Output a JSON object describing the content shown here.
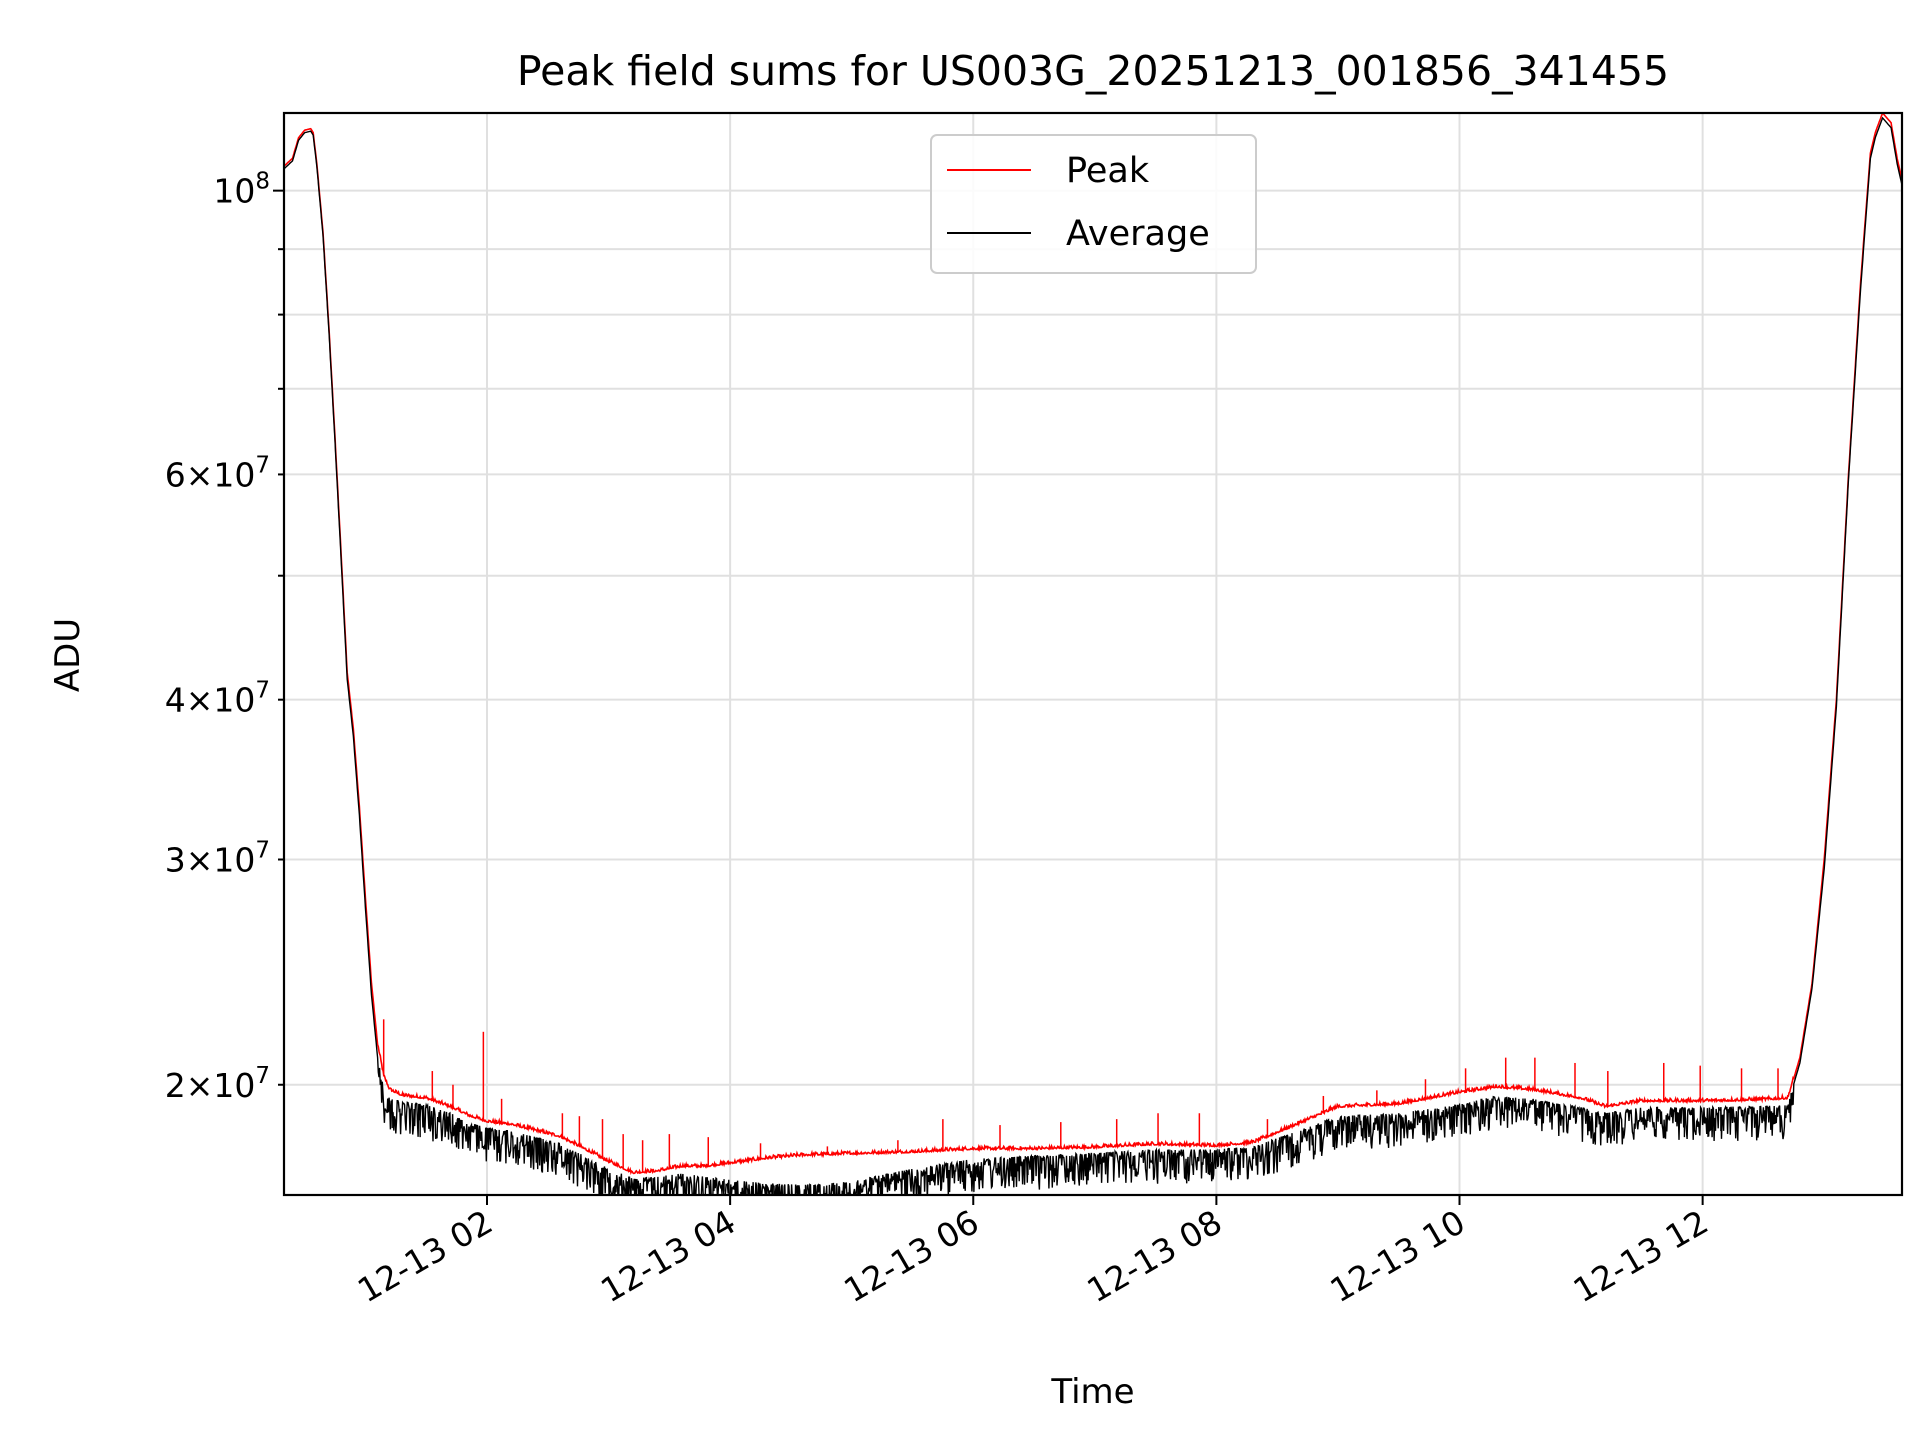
{
  "chart_data": {
    "type": "line",
    "title": "Peak field sums for US003G_20251213_001856_341455",
    "xlabel": "Time",
    "ylabel": "ADU",
    "yscale": "log",
    "xlim": [
      0.33,
      13.64
    ],
    "ylim": [
      16400000,
      115000000
    ],
    "grid": true,
    "legend_position": "top-center",
    "x_ticks": [
      {
        "value": 2,
        "label": "12-13 02"
      },
      {
        "value": 4,
        "label": "12-13 04"
      },
      {
        "value": 6,
        "label": "12-13 06"
      },
      {
        "value": 8,
        "label": "12-13 08"
      },
      {
        "value": 10,
        "label": "12-13 10"
      },
      {
        "value": 12,
        "label": "12-13 12"
      }
    ],
    "y_major_ticks": [
      {
        "value": 100000000,
        "mantissa": "",
        "base": "10",
        "exp": "8"
      }
    ],
    "y_minor_ticks": [
      {
        "value": 20000000,
        "mantissa": "2",
        "base": "10",
        "exp": "7"
      },
      {
        "value": 30000000,
        "mantissa": "3",
        "base": "10",
        "exp": "7"
      },
      {
        "value": 40000000,
        "mantissa": "4",
        "base": "10",
        "exp": "7"
      },
      {
        "value": 50000000,
        "mantissa": "",
        "base": "",
        "exp": ""
      },
      {
        "value": 60000000,
        "mantissa": "6",
        "base": "10",
        "exp": "7"
      },
      {
        "value": 70000000,
        "mantissa": "",
        "base": "",
        "exp": ""
      },
      {
        "value": 80000000,
        "mantissa": "",
        "base": "",
        "exp": ""
      },
      {
        "value": 90000000,
        "mantissa": "",
        "base": "",
        "exp": ""
      }
    ],
    "x_unit": "hours since 2025-12-13 00:00",
    "series": [
      {
        "name": "Peak",
        "color": "#ff0000",
        "points": [
          [
            0.33,
            104500000
          ],
          [
            0.4,
            106000000
          ],
          [
            0.45,
            110000000
          ],
          [
            0.5,
            111500000
          ],
          [
            0.55,
            111800000
          ],
          [
            0.57,
            111000000
          ],
          [
            0.6,
            105000000
          ],
          [
            0.65,
            93000000
          ],
          [
            0.7,
            78000000
          ],
          [
            0.75,
            64000000
          ],
          [
            0.8,
            52000000
          ],
          [
            0.85,
            42000000
          ],
          [
            0.9,
            38000000
          ],
          [
            0.95,
            33000000
          ],
          [
            1.0,
            28000000
          ],
          [
            1.05,
            24000000
          ],
          [
            1.1,
            21500000
          ],
          [
            1.15,
            20300000
          ],
          [
            1.2,
            19800000
          ],
          [
            1.3,
            19600000
          ],
          [
            1.5,
            19500000
          ],
          [
            1.7,
            19200000
          ],
          [
            1.85,
            18900000
          ],
          [
            2.0,
            18700000
          ],
          [
            2.2,
            18600000
          ],
          [
            2.4,
            18400000
          ],
          [
            2.6,
            18200000
          ],
          [
            2.8,
            17800000
          ],
          [
            3.0,
            17400000
          ],
          [
            3.2,
            17050000
          ],
          [
            3.4,
            17100000
          ],
          [
            3.6,
            17250000
          ],
          [
            3.8,
            17250000
          ],
          [
            4.0,
            17350000
          ],
          [
            4.3,
            17500000
          ],
          [
            4.6,
            17600000
          ],
          [
            5.0,
            17650000
          ],
          [
            5.5,
            17700000
          ],
          [
            6.0,
            17800000
          ],
          [
            6.5,
            17800000
          ],
          [
            7.0,
            17850000
          ],
          [
            7.5,
            17950000
          ],
          [
            8.0,
            17900000
          ],
          [
            8.3,
            18000000
          ],
          [
            8.6,
            18500000
          ],
          [
            9.0,
            19200000
          ],
          [
            9.5,
            19300000
          ],
          [
            10.0,
            19700000
          ],
          [
            10.3,
            19900000
          ],
          [
            10.6,
            19800000
          ],
          [
            11.0,
            19500000
          ],
          [
            11.2,
            19200000
          ],
          [
            11.5,
            19400000
          ],
          [
            12.0,
            19400000
          ],
          [
            12.5,
            19450000
          ],
          [
            12.7,
            19500000
          ],
          [
            12.8,
            21000000
          ],
          [
            12.9,
            24000000
          ],
          [
            13.0,
            30000000
          ],
          [
            13.1,
            40000000
          ],
          [
            13.2,
            60000000
          ],
          [
            13.3,
            85000000
          ],
          [
            13.38,
            107000000
          ],
          [
            13.42,
            111000000
          ],
          [
            13.48,
            115000000
          ],
          [
            13.55,
            113000000
          ],
          [
            13.6,
            106000000
          ],
          [
            13.64,
            102000000
          ]
        ]
      },
      {
        "name": "Average",
        "color": "#000000",
        "points": [
          [
            0.33,
            104000000
          ],
          [
            0.4,
            105500000
          ],
          [
            0.45,
            109500000
          ],
          [
            0.5,
            111000000
          ],
          [
            0.55,
            111300000
          ],
          [
            0.57,
            110500000
          ],
          [
            0.6,
            104500000
          ],
          [
            0.65,
            92500000
          ],
          [
            0.7,
            77500000
          ],
          [
            0.75,
            63500000
          ],
          [
            0.8,
            51500000
          ],
          [
            0.85,
            41500000
          ],
          [
            0.9,
            37500000
          ],
          [
            0.95,
            32500000
          ],
          [
            1.0,
            27500000
          ],
          [
            1.05,
            23500000
          ],
          [
            1.1,
            21000000
          ],
          [
            1.15,
            19900000
          ],
          [
            1.2,
            19500000
          ],
          [
            1.3,
            19400000
          ],
          [
            1.5,
            19300000
          ],
          [
            1.7,
            19000000
          ],
          [
            1.85,
            18700000
          ],
          [
            2.0,
            18500000
          ],
          [
            2.2,
            18400000
          ],
          [
            2.4,
            18200000
          ],
          [
            2.6,
            18000000
          ],
          [
            2.8,
            17600000
          ],
          [
            3.0,
            17200000
          ],
          [
            3.2,
            16900000
          ],
          [
            3.4,
            16950000
          ],
          [
            3.6,
            17050000
          ],
          [
            3.8,
            16950000
          ],
          [
            4.0,
            16850000
          ],
          [
            4.3,
            16750000
          ],
          [
            4.6,
            16700000
          ],
          [
            5.0,
            16800000
          ],
          [
            5.5,
            17200000
          ],
          [
            6.0,
            17500000
          ],
          [
            6.5,
            17600000
          ],
          [
            7.0,
            17700000
          ],
          [
            7.5,
            17800000
          ],
          [
            8.0,
            17800000
          ],
          [
            8.3,
            17900000
          ],
          [
            8.6,
            18300000
          ],
          [
            9.0,
            18900000
          ],
          [
            9.5,
            19000000
          ],
          [
            10.0,
            19300000
          ],
          [
            10.3,
            19600000
          ],
          [
            10.6,
            19500000
          ],
          [
            11.0,
            19200000
          ],
          [
            11.2,
            19000000
          ],
          [
            11.5,
            19200000
          ],
          [
            12.0,
            19200000
          ],
          [
            12.5,
            19250000
          ],
          [
            12.7,
            19300000
          ],
          [
            12.8,
            20800000
          ],
          [
            12.9,
            23800000
          ],
          [
            13.0,
            29500000
          ],
          [
            13.1,
            39500000
          ],
          [
            13.2,
            59500000
          ],
          [
            13.3,
            84000000
          ],
          [
            13.38,
            106000000
          ],
          [
            13.42,
            110000000
          ],
          [
            13.48,
            114000000
          ],
          [
            13.55,
            112000000
          ],
          [
            13.6,
            105000000
          ],
          [
            13.64,
            101000000
          ]
        ]
      }
    ],
    "peak_spikes": [
      [
        1.15,
        22500000
      ],
      [
        1.55,
        20500000
      ],
      [
        1.72,
        20000000
      ],
      [
        1.97,
        22000000
      ],
      [
        2.12,
        19500000
      ],
      [
        2.62,
        19000000
      ],
      [
        2.76,
        18900000
      ],
      [
        2.95,
        18800000
      ],
      [
        3.12,
        18300000
      ],
      [
        3.28,
        18100000
      ],
      [
        3.5,
        18300000
      ],
      [
        3.82,
        18200000
      ],
      [
        4.25,
        18000000
      ],
      [
        4.8,
        17900000
      ],
      [
        5.38,
        18100000
      ],
      [
        5.75,
        18800000
      ],
      [
        6.22,
        18600000
      ],
      [
        6.72,
        18700000
      ],
      [
        7.18,
        18800000
      ],
      [
        7.52,
        19000000
      ],
      [
        7.86,
        19000000
      ],
      [
        8.42,
        18800000
      ],
      [
        8.88,
        19600000
      ],
      [
        9.32,
        19800000
      ],
      [
        9.72,
        20200000
      ],
      [
        10.05,
        20600000
      ],
      [
        10.38,
        21000000
      ],
      [
        10.62,
        21000000
      ],
      [
        10.95,
        20800000
      ],
      [
        11.22,
        20500000
      ],
      [
        11.68,
        20800000
      ],
      [
        11.98,
        20700000
      ],
      [
        12.32,
        20600000
      ],
      [
        12.62,
        20600000
      ]
    ],
    "average_dips": [
      [
        1.22,
        18500000
      ],
      [
        1.45,
        18200000
      ],
      [
        1.92,
        17900000
      ],
      [
        2.35,
        17800000
      ],
      [
        2.85,
        17500000
      ],
      [
        3.35,
        16800000
      ],
      [
        3.95,
        16500000
      ],
      [
        4.35,
        16200000
      ],
      [
        4.62,
        16100000
      ],
      [
        4.85,
        16100000
      ],
      [
        5.05,
        16200000
      ],
      [
        5.45,
        16400000
      ],
      [
        5.92,
        16700000
      ],
      [
        6.45,
        17000000
      ],
      [
        6.95,
        17100000
      ],
      [
        7.45,
        17200000
      ],
      [
        7.95,
        17400000
      ],
      [
        8.52,
        17700000
      ],
      [
        9.12,
        18400000
      ],
      [
        9.62,
        18500000
      ],
      [
        10.22,
        18900000
      ],
      [
        10.72,
        18900000
      ],
      [
        11.22,
        18600000
      ],
      [
        11.85,
        18200000
      ],
      [
        12.15,
        18400000
      ],
      [
        12.52,
        18900000
      ]
    ],
    "legend": [
      {
        "label": "Peak",
        "color": "#ff0000"
      },
      {
        "label": "Average",
        "color": "#000000"
      }
    ]
  }
}
